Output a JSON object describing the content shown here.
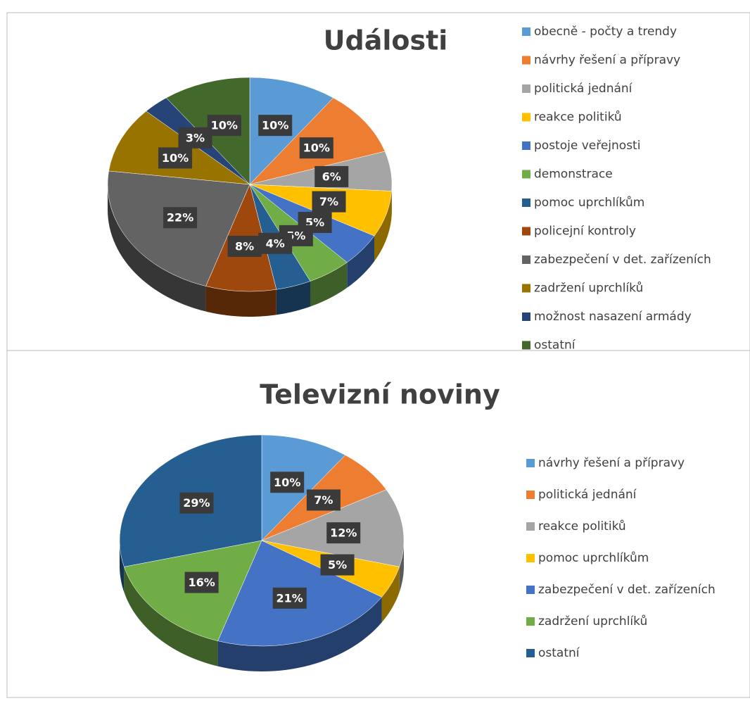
{
  "chart_data": [
    {
      "type": "pie",
      "title": "Události",
      "categories": [
        "obecně - počty a trendy",
        "návrhy řešení a přípravy",
        "politická jednání",
        "reakce politiků",
        "postoje veřejnosti",
        "demonstrace",
        "pomoc uprchlíkům",
        "policejní kontroly",
        "zabezpečení v det. zařízeních",
        "zadržení uprchlíků",
        "možnost nasazení armády",
        "ostatní"
      ],
      "values": [
        10,
        10,
        6,
        7,
        5,
        5,
        4,
        8,
        22,
        10,
        3,
        10
      ],
      "value_labels": [
        "10%",
        "10%",
        "6%",
        "7%",
        "5%",
        "5%",
        "4%",
        "8%",
        "22%",
        "10%",
        "3%",
        "10%"
      ],
      "colors": [
        "#5b9bd5",
        "#ed7d31",
        "#a5a5a5",
        "#ffc000",
        "#4472c4",
        "#70ad47",
        "#255e91",
        "#9e480e",
        "#636363",
        "#997300",
        "#264478",
        "#43682b"
      ]
    },
    {
      "type": "pie",
      "title": "Televizní noviny",
      "categories": [
        "návrhy řešení a přípravy",
        "politická jednání",
        "reakce politiků",
        "pomoc uprchlíkům",
        "zabezpečení v det. zařízeních",
        "zadržení uprchlíků",
        "ostatní"
      ],
      "values": [
        10,
        7,
        12,
        5,
        21,
        16,
        29
      ],
      "value_labels": [
        "10%",
        "7%",
        "12%",
        "5%",
        "21%",
        "16%",
        "29%"
      ],
      "colors": [
        "#5b9bd5",
        "#ed7d31",
        "#a5a5a5",
        "#ffc000",
        "#4472c4",
        "#70ad47",
        "#255e91"
      ]
    }
  ]
}
